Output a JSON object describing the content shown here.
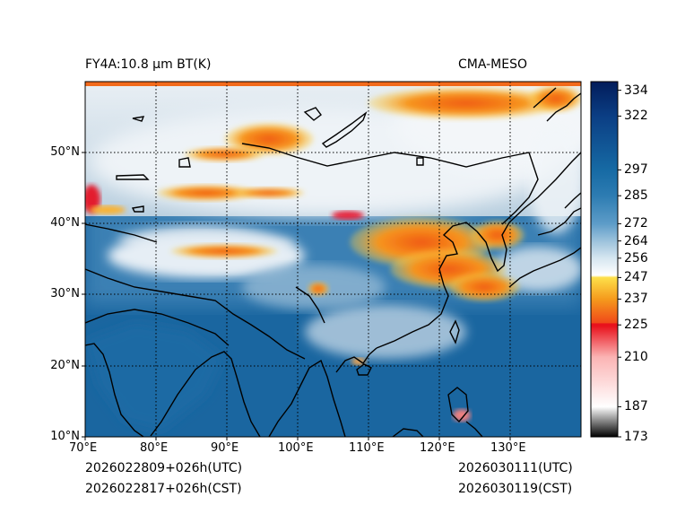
{
  "title_left": "FY4A:10.8 µm BT(K)",
  "title_right": "CMA-MESO",
  "time_left_utc": "2026022809+026h(UTC)",
  "time_left_cst": "2026022817+026h(CST)",
  "time_right_utc": "2026030111(UTC)",
  "time_right_cst": "2026030119(CST)",
  "lon_ticks": [
    "70°E",
    "80°E",
    "90°E",
    "100°E",
    "110°E",
    "120°E",
    "130°E"
  ],
  "lat_ticks": [
    "10°N",
    "20°N",
    "30°N",
    "40°N",
    "50°N"
  ],
  "colorbar": {
    "min": 173,
    "max": 338,
    "ticks": [
      {
        "value": 173,
        "label": "173"
      },
      {
        "value": 187,
        "label": "187"
      },
      {
        "value": 210,
        "label": "210"
      },
      {
        "value": 225,
        "label": "225"
      },
      {
        "value": 237,
        "label": "237"
      },
      {
        "value": 247,
        "label": "247"
      },
      {
        "value": 256,
        "label": "256"
      },
      {
        "value": 264,
        "label": "264"
      },
      {
        "value": 272,
        "label": "272"
      },
      {
        "value": 285,
        "label": "285"
      },
      {
        "value": 297,
        "label": "297"
      },
      {
        "value": 322,
        "label": "322"
      },
      {
        "value": 334,
        "label": "334"
      }
    ]
  }
}
